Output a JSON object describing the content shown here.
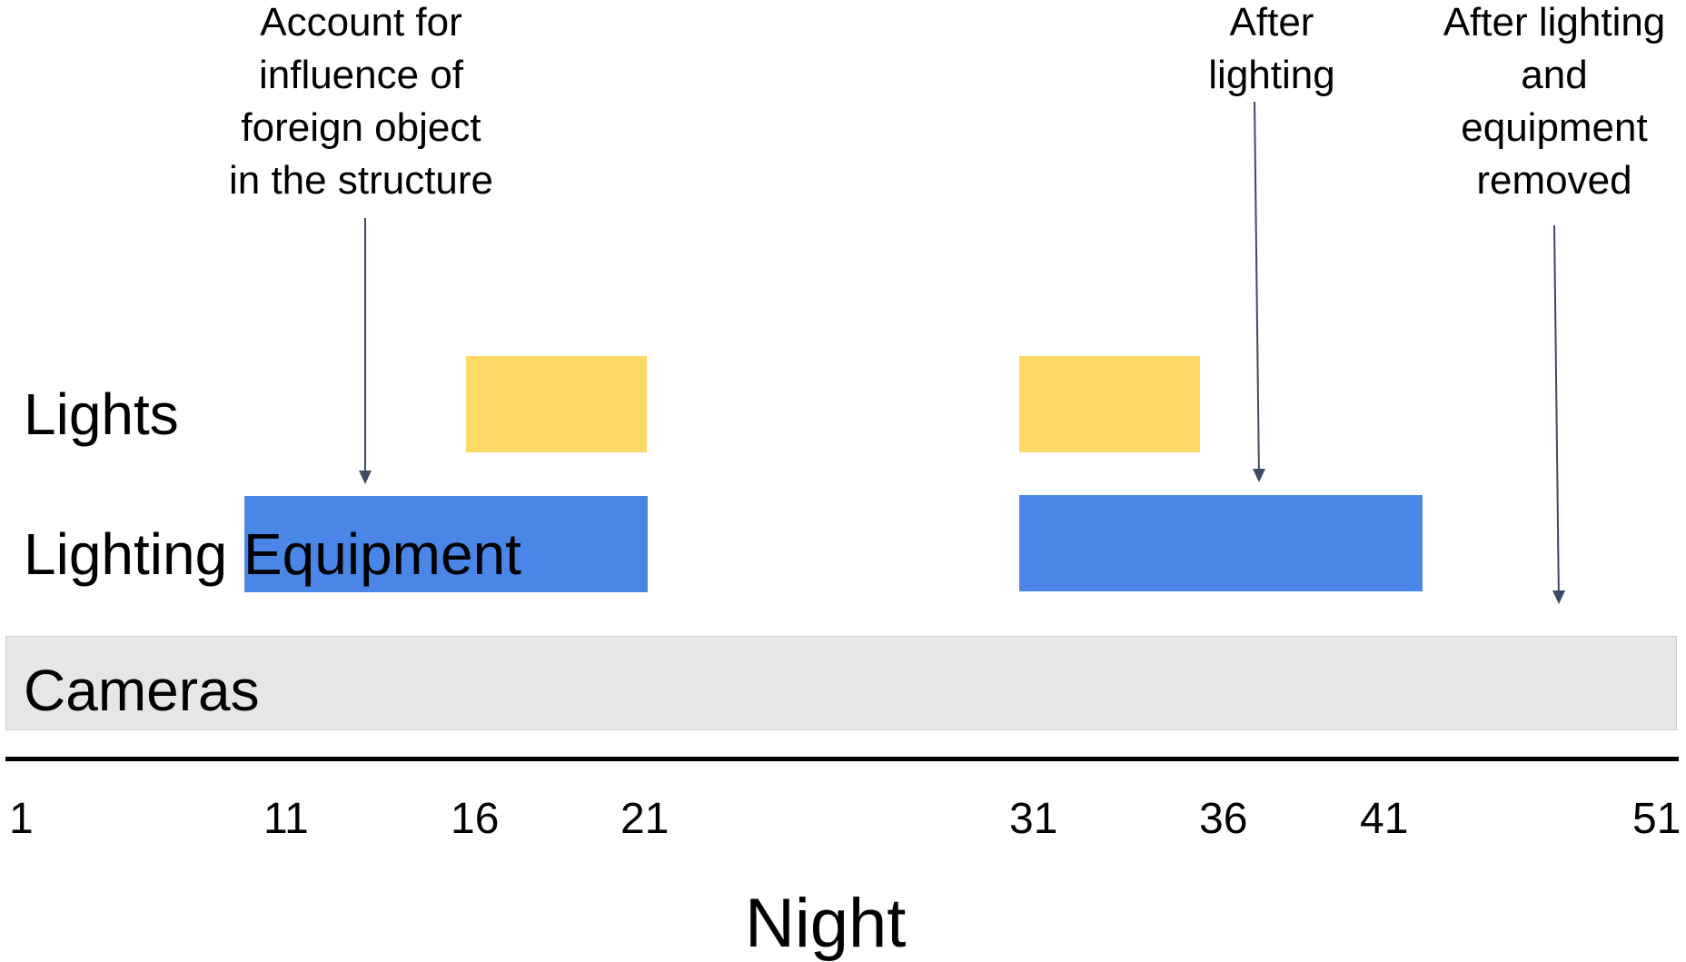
{
  "annotations": {
    "foreign_object": [
      "Account for",
      "influence of",
      "foreign object",
      "in the structure"
    ],
    "after_lighting": [
      "After",
      "lighting"
    ],
    "after_removed": [
      "After lighting",
      "and",
      "equipment",
      "removed"
    ]
  },
  "rows": {
    "lights": "Lights",
    "lighting_equipment_a": "Lighting",
    "lighting_equipment_b": "Equipment",
    "cameras": "Cameras"
  },
  "axis": {
    "ticks": [
      "1",
      "11",
      "16",
      "21",
      "31",
      "36",
      "41",
      "51"
    ],
    "label": "Night"
  },
  "colors": {
    "lights": "#FFD966",
    "lighting_equipment": "#4A86E8",
    "cameras": "#E6E6E6",
    "arrow": "#3C4A64"
  }
}
